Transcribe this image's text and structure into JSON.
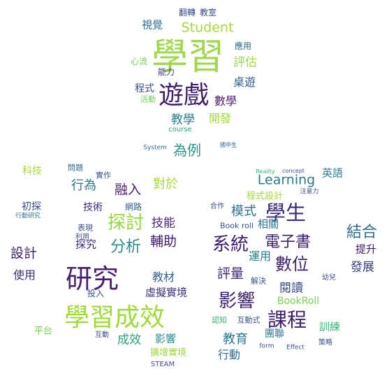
{
  "words": [
    {
      "text": "學習",
      "color": "#9fd84b"
    },
    {
      "text": "遊戲",
      "color": "#3d1f6d"
    },
    {
      "text": "Student",
      "color": "#a8d83a"
    },
    {
      "text": "評估",
      "color": "#9fd84b"
    },
    {
      "text": "數學",
      "color": "#4b1c6e"
    },
    {
      "text": "桌遊",
      "color": "#2e5f8a"
    },
    {
      "text": "視覺",
      "color": "#2b6f8d"
    },
    {
      "text": "翻轉",
      "color": "#3a4a8a"
    },
    {
      "text": "教室",
      "color": "#3a4a8a"
    },
    {
      "text": "教學",
      "color": "#26818c"
    },
    {
      "text": "開發",
      "color": "#9ed838"
    },
    {
      "text": "程式",
      "color": "#3b4f8a"
    },
    {
      "text": "活動",
      "color": "#6ecf58"
    },
    {
      "text": "能力",
      "color": "#3b3f86"
    },
    {
      "text": "應用",
      "color": "#2a6a8a"
    },
    {
      "text": "心流",
      "color": "#7ad151"
    },
    {
      "text": "course",
      "color": "#23a883"
    },
    {
      "text": "為例",
      "color": "#26938a"
    },
    {
      "text": "System",
      "color": "#2d708e"
    },
    {
      "text": "國中生",
      "color": "#2c5f8c"
    },
    {
      "text": "科技",
      "color": "#a8d83a"
    },
    {
      "text": "問題",
      "color": "#2e6f8e"
    },
    {
      "text": "實作",
      "color": "#3b528b"
    },
    {
      "text": "行為",
      "color": "#2a778e"
    },
    {
      "text": "融入",
      "color": "#4a1f6f"
    },
    {
      "text": "技術",
      "color": "#3e2a7a"
    },
    {
      "text": "網路",
      "color": "#33638d"
    },
    {
      "text": "對於",
      "color": "#a8d83a"
    },
    {
      "text": "初探",
      "color": "#3e4989"
    },
    {
      "text": "探討",
      "color": "#95d840"
    },
    {
      "text": "技能",
      "color": "#482878"
    },
    {
      "text": "設計",
      "color": "#3b1f6a"
    },
    {
      "text": "探究",
      "color": "#3e2a7a"
    },
    {
      "text": "分析",
      "color": "#2c8a8c"
    },
    {
      "text": "輔助",
      "color": "#3d1a6b"
    },
    {
      "text": "使用",
      "color": "#3b2f7a"
    },
    {
      "text": "研究",
      "color": "#4a1f6f"
    },
    {
      "text": "教材",
      "color": "#33658d"
    },
    {
      "text": "虛擬實境",
      "color": "#3b2f7a"
    },
    {
      "text": "學習成效",
      "color": "#a0da39"
    },
    {
      "text": "成效",
      "color": "#2fa27a"
    },
    {
      "text": "影響",
      "color": "#2b8a8c"
    },
    {
      "text": "平台",
      "color": "#7ad151"
    },
    {
      "text": "互動",
      "color": "#3e4c8a"
    },
    {
      "text": "擴增實境",
      "color": "#9ed838"
    },
    {
      "text": "STEAM",
      "color": "#3b528b"
    },
    {
      "text": "表現",
      "color": "#3b528b"
    },
    {
      "text": "利用",
      "color": "#3b528b"
    },
    {
      "text": "投入",
      "color": "#3b528b"
    },
    {
      "text": "行動研究",
      "color": "#2e7f8e"
    },
    {
      "text": "英語",
      "color": "#26828e"
    },
    {
      "text": "Learning",
      "color": "#2a788e"
    },
    {
      "text": "程式設計",
      "color": "#a8d83a"
    },
    {
      "text": "學生",
      "color": "#3e2a7a"
    },
    {
      "text": "模式",
      "color": "#2e718e"
    },
    {
      "text": "相關",
      "color": "#2a768e"
    },
    {
      "text": "系統",
      "color": "#3b1f6a"
    },
    {
      "text": "電子書",
      "color": "#3b1f6a"
    },
    {
      "text": "結合",
      "color": "#2c6f8e"
    },
    {
      "text": "運用",
      "color": "#2a7a8e"
    },
    {
      "text": "數位",
      "color": "#3d1f6d"
    },
    {
      "text": "提升",
      "color": "#3b1f6a"
    },
    {
      "text": "評量",
      "color": "#3e2a7a"
    },
    {
      "text": "閱讀",
      "color": "#3a4a8a"
    },
    {
      "text": "發展",
      "color": "#3b3f86"
    },
    {
      "text": "影響",
      "color": "#3b1f6a"
    },
    {
      "text": "BookRoll",
      "color": "#7ad151"
    },
    {
      "text": "課程",
      "color": "#3d1f6d"
    },
    {
      "text": "教育",
      "color": "#2a788e"
    },
    {
      "text": "團聯",
      "color": "#2a788e"
    },
    {
      "text": "訓練",
      "color": "#35b779"
    },
    {
      "text": "行動",
      "color": "#31688e"
    },
    {
      "text": "互動式",
      "color": "#3b528b"
    },
    {
      "text": "認知",
      "color": "#35b779"
    },
    {
      "text": "Book roll",
      "color": "#3b528b"
    },
    {
      "text": "合作",
      "color": "#3b528b"
    },
    {
      "text": "解決",
      "color": "#3b528b"
    },
    {
      "text": "注意力",
      "color": "#3b528b"
    },
    {
      "text": "form",
      "color": "#3b528b"
    },
    {
      "text": "Effect",
      "color": "#3b528b"
    },
    {
      "text": "策略",
      "color": "#3b528b"
    },
    {
      "text": "幼兒",
      "color": "#3b528b"
    },
    {
      "text": "Reality",
      "color": "#35b779"
    },
    {
      "text": "concept",
      "color": "#3b528b"
    }
  ]
}
